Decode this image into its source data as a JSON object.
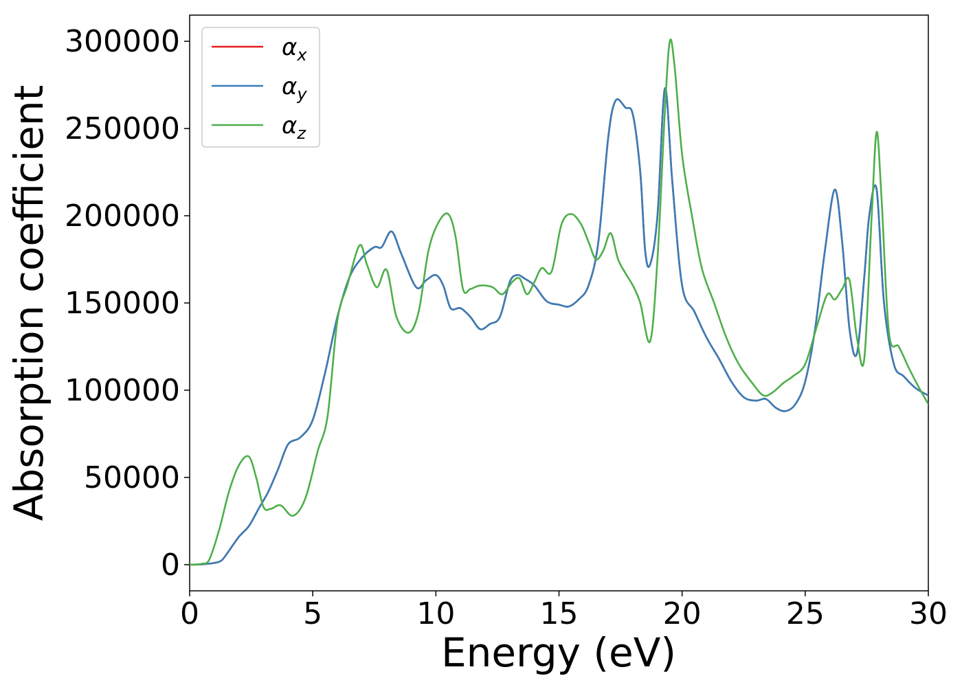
{
  "chart_data": {
    "type": "line",
    "xlabel": "Energy (eV)",
    "ylabel": "Absorption coefficient",
    "xlim": [
      0,
      30
    ],
    "ylim": [
      -15000,
      315000
    ],
    "xticks": [
      "0",
      "5",
      "10",
      "15",
      "20",
      "25",
      "30"
    ],
    "yticks": [
      "0",
      "50000",
      "100000",
      "150000",
      "200000",
      "250000",
      "300000"
    ],
    "legend_position": "top-left",
    "grid": false,
    "series": [
      {
        "name": "αx",
        "legend": {
          "base": "α",
          "sub": "x"
        },
        "color": "#e41a1c",
        "x": [
          0,
          0.5,
          1.0,
          1.3,
          1.6,
          2.0,
          2.4,
          2.8,
          3.2,
          3.6,
          4.0,
          4.5,
          5.0,
          5.5,
          6.0,
          6.5,
          7.0,
          7.5,
          7.8,
          8.2,
          8.6,
          9.2,
          9.6,
          10.0,
          10.3,
          10.6,
          11.0,
          11.4,
          11.8,
          12.2,
          12.6,
          13.0,
          13.3,
          13.6,
          14.0,
          14.5,
          15.0,
          15.4,
          15.8,
          16.2,
          16.6,
          17.0,
          17.3,
          17.7,
          18.0,
          18.3,
          18.5,
          18.7,
          19.0,
          19.3,
          19.6,
          20.0,
          20.5,
          21.0,
          21.5,
          22.0,
          22.5,
          23.0,
          23.4,
          23.8,
          24.2,
          24.6,
          25.0,
          25.4,
          25.8,
          26.2,
          26.5,
          26.8,
          27.1,
          27.4,
          27.6,
          27.9,
          28.2,
          28.6,
          29.0,
          29.5,
          30.0
        ],
        "values": [
          0,
          200,
          1000,
          2500,
          8000,
          16000,
          22000,
          32000,
          42000,
          55000,
          69000,
          73000,
          83000,
          110000,
          142000,
          165000,
          176000,
          182000,
          182000,
          191000,
          178000,
          159000,
          163000,
          166000,
          160000,
          147000,
          147000,
          142000,
          135000,
          138000,
          142000,
          162000,
          166000,
          164000,
          160000,
          151000,
          149000,
          148000,
          152000,
          160000,
          185000,
          245000,
          266000,
          262000,
          258000,
          225000,
          180000,
          172000,
          200000,
          273000,
          220000,
          160000,
          145000,
          130000,
          118000,
          105000,
          96000,
          94000,
          95000,
          90000,
          88000,
          92000,
          105000,
          135000,
          180000,
          215000,
          185000,
          135000,
          121000,
          165000,
          200000,
          215000,
          150000,
          115000,
          108000,
          101000,
          97000
        ]
      },
      {
        "name": "αy",
        "legend": {
          "base": "α",
          "sub": "y"
        },
        "color": "#377eb8",
        "x": [
          0,
          0.5,
          1.0,
          1.3,
          1.6,
          2.0,
          2.4,
          2.8,
          3.2,
          3.6,
          4.0,
          4.5,
          5.0,
          5.5,
          6.0,
          6.5,
          7.0,
          7.5,
          7.8,
          8.2,
          8.6,
          9.2,
          9.6,
          10.0,
          10.3,
          10.6,
          11.0,
          11.4,
          11.8,
          12.2,
          12.6,
          13.0,
          13.3,
          13.6,
          14.0,
          14.5,
          15.0,
          15.4,
          15.8,
          16.2,
          16.6,
          17.0,
          17.3,
          17.7,
          18.0,
          18.3,
          18.5,
          18.7,
          19.0,
          19.3,
          19.6,
          20.0,
          20.5,
          21.0,
          21.5,
          22.0,
          22.5,
          23.0,
          23.4,
          23.8,
          24.2,
          24.6,
          25.0,
          25.4,
          25.8,
          26.2,
          26.5,
          26.8,
          27.1,
          27.4,
          27.6,
          27.9,
          28.2,
          28.6,
          29.0,
          29.5,
          30.0
        ],
        "values": [
          0,
          200,
          1000,
          2500,
          8000,
          16000,
          22000,
          32000,
          42000,
          55000,
          69000,
          73000,
          83000,
          110000,
          142000,
          165000,
          176000,
          182000,
          182000,
          191000,
          178000,
          159000,
          163000,
          166000,
          160000,
          147000,
          147000,
          142000,
          135000,
          138000,
          142000,
          162000,
          166000,
          164000,
          160000,
          151000,
          149000,
          148000,
          152000,
          160000,
          185000,
          245000,
          266000,
          262000,
          258000,
          225000,
          180000,
          172000,
          200000,
          273000,
          220000,
          160000,
          145000,
          130000,
          118000,
          105000,
          96000,
          94000,
          95000,
          90000,
          88000,
          92000,
          105000,
          135000,
          180000,
          215000,
          185000,
          135000,
          121000,
          165000,
          200000,
          215000,
          150000,
          115000,
          108000,
          101000,
          97000
        ]
      },
      {
        "name": "αz",
        "legend": {
          "base": "α",
          "sub": "z"
        },
        "color": "#4daf4a",
        "x": [
          0,
          0.5,
          0.8,
          1.2,
          1.6,
          2.0,
          2.4,
          2.7,
          3.0,
          3.3,
          3.7,
          4.2,
          4.7,
          5.2,
          5.6,
          6.0,
          6.4,
          6.9,
          7.2,
          7.6,
          8.0,
          8.4,
          8.9,
          9.3,
          9.7,
          10.1,
          10.5,
          10.8,
          11.1,
          11.4,
          11.8,
          12.3,
          12.7,
          13.1,
          13.4,
          13.7,
          14.0,
          14.3,
          14.7,
          15.1,
          15.5,
          15.9,
          16.2,
          16.5,
          16.8,
          17.1,
          17.4,
          17.7,
          18.0,
          18.3,
          18.7,
          19.0,
          19.3,
          19.5,
          19.7,
          20.0,
          20.4,
          20.8,
          21.3,
          21.8,
          22.3,
          22.8,
          23.3,
          23.7,
          24.1,
          24.5,
          25.0,
          25.5,
          25.9,
          26.2,
          26.5,
          26.8,
          27.1,
          27.4,
          27.7,
          27.9,
          28.1,
          28.4,
          28.8,
          29.2,
          29.6,
          30.0
        ],
        "values": [
          0,
          500,
          3000,
          20000,
          42000,
          57000,
          62000,
          50000,
          33000,
          32000,
          34000,
          28000,
          38000,
          65000,
          85000,
          140000,
          160000,
          183000,
          172000,
          159000,
          169000,
          142000,
          133000,
          145000,
          180000,
          196000,
          201000,
          188000,
          158000,
          158000,
          160000,
          159000,
          155000,
          162000,
          164000,
          155000,
          162000,
          170000,
          168000,
          195000,
          201000,
          195000,
          185000,
          175000,
          180000,
          190000,
          175000,
          167000,
          160000,
          150000,
          128000,
          175000,
          260000,
          300000,
          285000,
          235000,
          200000,
          170000,
          150000,
          130000,
          115000,
          105000,
          97000,
          99000,
          104000,
          108000,
          115000,
          138000,
          155000,
          152000,
          158000,
          163000,
          130000,
          118000,
          200000,
          248000,
          210000,
          133000,
          125000,
          113000,
          102000,
          92000
        ]
      }
    ]
  }
}
